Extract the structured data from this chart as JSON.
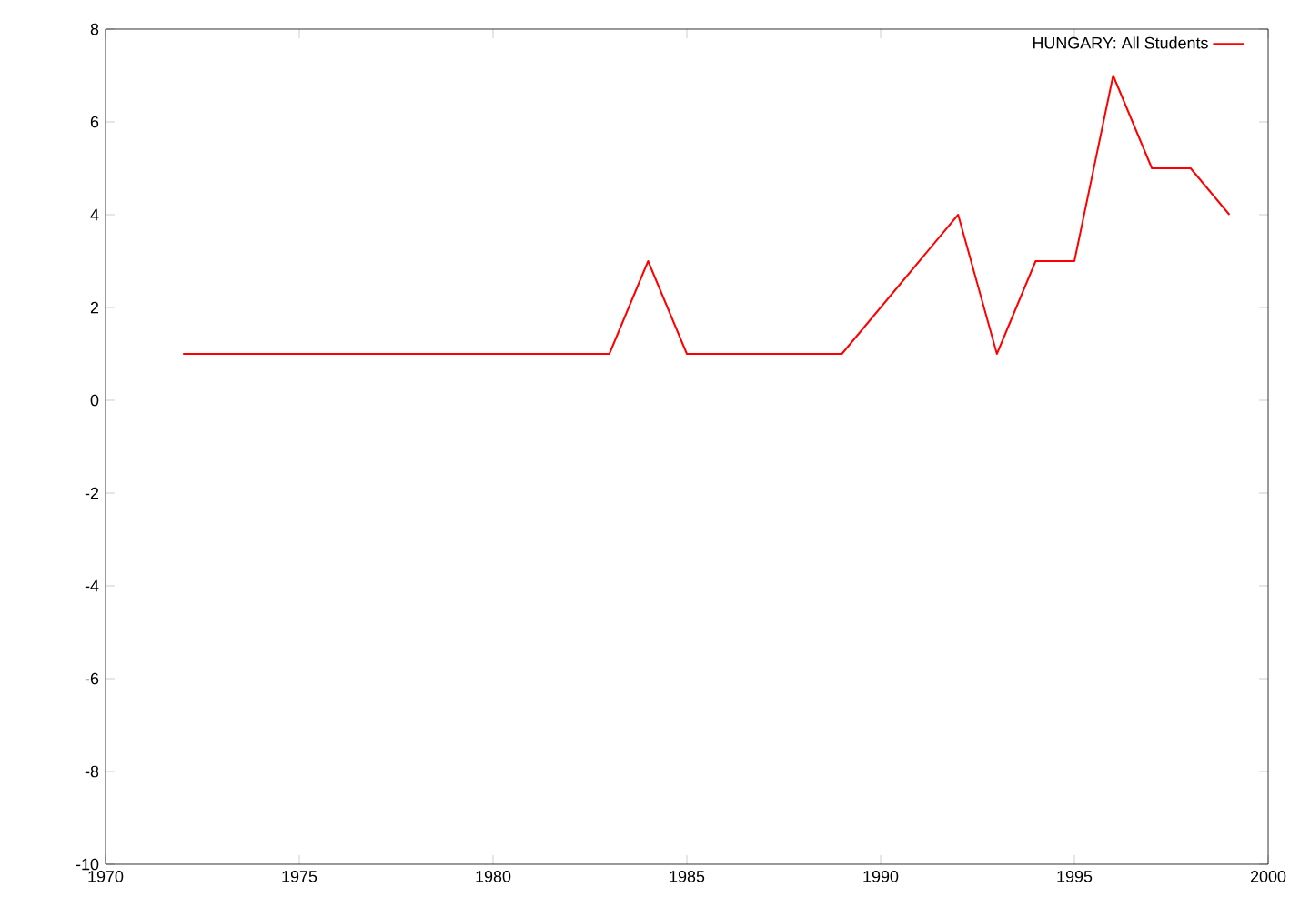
{
  "chart_data": {
    "type": "line",
    "x": [
      1972,
      1973,
      1974,
      1975,
      1976,
      1977,
      1978,
      1979,
      1980,
      1981,
      1982,
      1983,
      1984,
      1985,
      1986,
      1987,
      1988,
      1989,
      1990,
      1991,
      1992,
      1993,
      1994,
      1995,
      1996,
      1997,
      1998,
      1999
    ],
    "series": [
      {
        "name": "HUNGARY: All Students",
        "color": "#ff0000",
        "values": [
          1,
          1,
          1,
          1,
          1,
          1,
          1,
          1,
          1,
          1,
          1,
          1,
          3,
          1,
          1,
          1,
          1,
          1,
          2,
          3,
          4,
          1,
          3,
          3,
          7,
          5,
          5,
          4
        ]
      }
    ],
    "xlim": [
      1970,
      2000
    ],
    "xticks": [
      1970,
      1975,
      1980,
      1985,
      1990,
      1995,
      2000
    ],
    "ylim": [
      -10,
      8
    ],
    "yticks": [
      -10,
      -8,
      -6,
      -4,
      -2,
      0,
      2,
      4,
      6,
      8
    ],
    "legend": "top right",
    "grid": false,
    "marker": "none",
    "line_style": "solid"
  }
}
